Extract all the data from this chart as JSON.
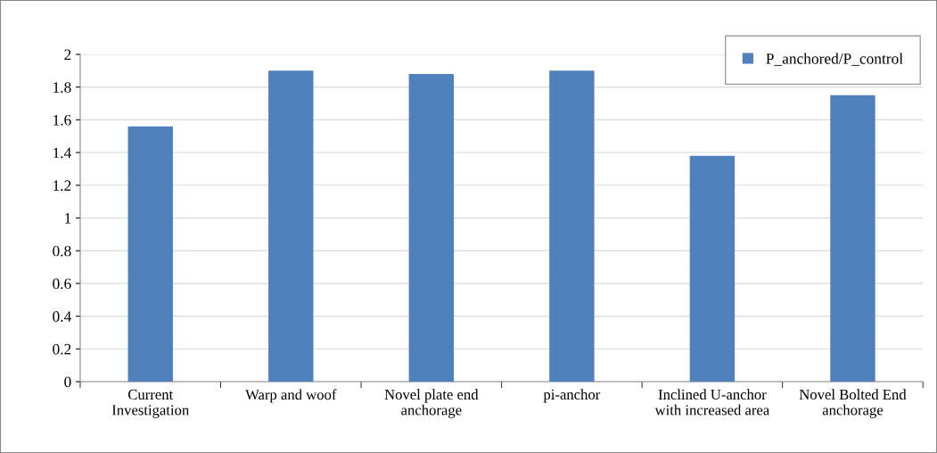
{
  "chart_data": {
    "type": "bar",
    "categories": [
      "Current Investigation",
      "Warp and woof",
      "Novel plate end anchorage",
      "pi-anchor",
      "Inclined U-anchor with increased area",
      "Novel Bolted End anchorage"
    ],
    "series": [
      {
        "name": "P_anchored/P_control",
        "color": "#4f81bd",
        "values": [
          1.56,
          1.9,
          1.88,
          1.9,
          1.38,
          1.75
        ]
      }
    ],
    "ylim": [
      0,
      2
    ],
    "yticks": [
      0,
      0.2,
      0.4,
      0.6,
      0.8,
      1,
      1.2,
      1.4,
      1.6,
      1.8,
      2
    ],
    "grid": "y",
    "legend": "top right"
  }
}
